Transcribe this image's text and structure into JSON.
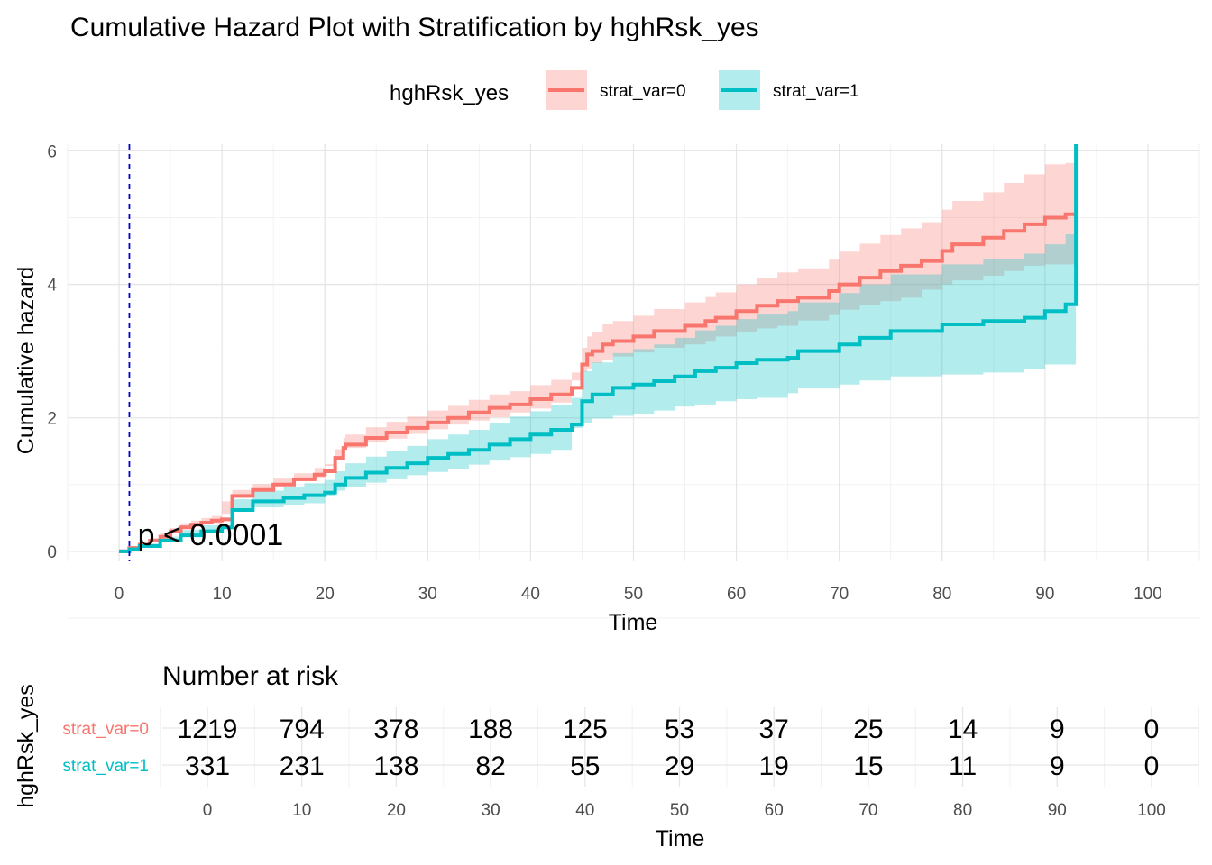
{
  "chart_data": {
    "type": "line",
    "title": "Cumulative Hazard Plot with Stratification by hghRsk_yes",
    "xlabel": "Time",
    "ylabel": "Cumulative hazard",
    "xlim": [
      -5,
      105
    ],
    "ylim": [
      -0.15,
      6.1
    ],
    "xticks": [
      0,
      10,
      20,
      30,
      40,
      50,
      60,
      70,
      80,
      90,
      100
    ],
    "yticks": [
      0,
      2,
      4,
      6
    ],
    "grid": true,
    "reference_line_x": 1,
    "annotation": "p < 0.0001",
    "legend": {
      "title": "hghRsk_yes",
      "placement": "top"
    },
    "series": [
      {
        "name": "strat_var=0",
        "color": "#F8766D",
        "band_color": "#F8766D",
        "x": [
          0,
          1,
          2,
          3,
          4,
          5,
          6,
          7,
          8,
          9,
          10,
          11,
          13,
          15,
          17,
          19,
          20,
          21,
          21.8,
          22,
          24,
          26,
          28,
          30,
          32,
          34,
          36,
          38,
          40,
          42,
          44,
          45,
          45.5,
          46,
          47,
          48,
          50,
          52,
          55,
          57,
          58,
          60,
          62,
          64,
          66,
          69,
          70,
          72,
          74,
          76,
          78,
          80,
          81,
          84,
          86,
          88,
          90,
          92,
          93
        ],
        "y": [
          0,
          0.05,
          0.1,
          0.16,
          0.22,
          0.3,
          0.36,
          0.4,
          0.43,
          0.46,
          0.48,
          0.83,
          0.92,
          1.0,
          1.08,
          1.15,
          1.2,
          1.4,
          1.55,
          1.6,
          1.7,
          1.78,
          1.85,
          1.93,
          2.0,
          2.08,
          2.15,
          2.2,
          2.28,
          2.35,
          2.45,
          2.8,
          2.95,
          3.0,
          3.1,
          3.15,
          3.22,
          3.3,
          3.38,
          3.45,
          3.5,
          3.6,
          3.68,
          3.75,
          3.8,
          3.9,
          4.0,
          4.1,
          4.2,
          4.28,
          4.35,
          4.5,
          4.6,
          4.7,
          4.8,
          4.9,
          5.0,
          5.05,
          5.05
        ],
        "lower": [
          0,
          0.03,
          0.07,
          0.12,
          0.18,
          0.25,
          0.3,
          0.34,
          0.37,
          0.4,
          0.42,
          0.75,
          0.84,
          0.92,
          0.99,
          1.05,
          1.1,
          1.28,
          1.41,
          1.46,
          1.55,
          1.63,
          1.69,
          1.76,
          1.83,
          1.9,
          1.96,
          2.01,
          2.08,
          2.14,
          2.23,
          2.56,
          2.69,
          2.74,
          2.82,
          2.86,
          2.92,
          2.98,
          3.05,
          3.1,
          3.14,
          3.22,
          3.28,
          3.34,
          3.38,
          3.46,
          3.54,
          3.62,
          3.69,
          3.75,
          3.8,
          3.92,
          4.0,
          4.06,
          4.13,
          4.2,
          4.28,
          4.3,
          4.3
        ],
        "upper": [
          0,
          0.07,
          0.13,
          0.2,
          0.27,
          0.35,
          0.42,
          0.46,
          0.5,
          0.53,
          0.55,
          0.92,
          1.01,
          1.09,
          1.17,
          1.25,
          1.31,
          1.53,
          1.7,
          1.75,
          1.86,
          1.94,
          2.02,
          2.11,
          2.18,
          2.27,
          2.35,
          2.4,
          2.49,
          2.57,
          2.68,
          3.05,
          3.22,
          3.28,
          3.4,
          3.45,
          3.53,
          3.63,
          3.73,
          3.81,
          3.88,
          4.0,
          4.1,
          4.18,
          4.24,
          4.37,
          4.49,
          4.61,
          4.74,
          4.84,
          4.93,
          5.12,
          5.25,
          5.38,
          5.52,
          5.65,
          5.8,
          5.82,
          5.82
        ]
      },
      {
        "name": "strat_var=1",
        "color": "#00BFC4",
        "band_color": "#00BFC4",
        "x": [
          0,
          1,
          2,
          4,
          6,
          8,
          10,
          11,
          13,
          16,
          18,
          20,
          21,
          22,
          24,
          26,
          28,
          30,
          32,
          34,
          36,
          38,
          40,
          42,
          44,
          45,
          46,
          48,
          50,
          52,
          54,
          56,
          58,
          60,
          62,
          65,
          66,
          70,
          72,
          75,
          80,
          84,
          88,
          90,
          92,
          93
        ],
        "y": [
          0,
          0.03,
          0.08,
          0.16,
          0.24,
          0.3,
          0.36,
          0.62,
          0.75,
          0.8,
          0.84,
          0.88,
          1.0,
          1.1,
          1.18,
          1.25,
          1.32,
          1.4,
          1.46,
          1.52,
          1.6,
          1.68,
          1.75,
          1.82,
          1.9,
          2.25,
          2.35,
          2.45,
          2.5,
          2.55,
          2.62,
          2.7,
          2.75,
          2.82,
          2.87,
          2.9,
          3.0,
          3.1,
          3.2,
          3.3,
          3.4,
          3.45,
          3.5,
          3.6,
          3.7,
          6.1
        ],
        "lower": [
          0,
          0.02,
          0.05,
          0.11,
          0.17,
          0.22,
          0.27,
          0.5,
          0.62,
          0.66,
          0.69,
          0.72,
          0.83,
          0.91,
          0.97,
          1.03,
          1.08,
          1.14,
          1.19,
          1.24,
          1.3,
          1.36,
          1.41,
          1.46,
          1.52,
          1.85,
          1.92,
          1.99,
          2.03,
          2.06,
          2.11,
          2.17,
          2.2,
          2.25,
          2.28,
          2.3,
          2.37,
          2.44,
          2.5,
          2.56,
          2.62,
          2.65,
          2.68,
          2.73,
          2.8,
          2.8
        ],
        "upper": [
          0,
          0.05,
          0.12,
          0.22,
          0.32,
          0.39,
          0.46,
          0.78,
          0.91,
          0.97,
          1.02,
          1.07,
          1.2,
          1.32,
          1.42,
          1.5,
          1.58,
          1.68,
          1.75,
          1.82,
          1.92,
          2.02,
          2.1,
          2.19,
          2.3,
          2.7,
          2.83,
          2.97,
          3.03,
          3.1,
          3.2,
          3.31,
          3.38,
          3.48,
          3.55,
          3.6,
          3.73,
          3.87,
          4.0,
          4.15,
          4.3,
          4.38,
          4.46,
          4.6,
          4.75,
          4.75
        ]
      }
    ]
  },
  "risk_table": {
    "title": "Number at risk",
    "ylabel": "hghRsk_yes",
    "xlabel": "Time",
    "times": [
      0,
      10,
      20,
      30,
      40,
      50,
      60,
      70,
      80,
      90,
      100
    ],
    "rows": [
      {
        "label": "strat_var=0",
        "color": "#F8766D",
        "values": [
          1219,
          794,
          378,
          188,
          125,
          53,
          37,
          25,
          14,
          9,
          0
        ]
      },
      {
        "label": "strat_var=1",
        "color": "#00BFC4",
        "values": [
          331,
          231,
          138,
          82,
          55,
          29,
          19,
          15,
          11,
          9,
          0
        ]
      }
    ]
  }
}
